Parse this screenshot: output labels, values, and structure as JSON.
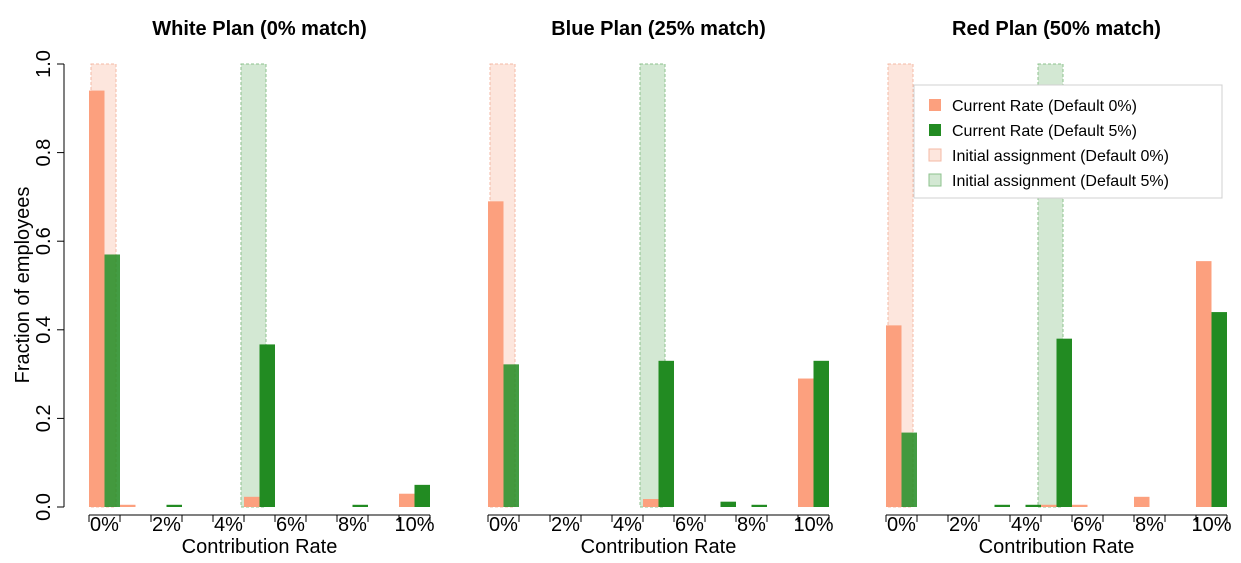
{
  "colors": {
    "current_default0": "#fca07e",
    "current_default5": "#228b22",
    "initial_default0": "#fde6dd",
    "initial_default5": "#d3e8d3",
    "initial_default0_border": "#f4b9a5",
    "initial_default5_border": "#8cc28c"
  },
  "shared": {
    "ylabel": "Fraction of employees",
    "xlabel": "Contribution Rate",
    "yticks": [
      "0.0",
      "0.2",
      "0.4",
      "0.6",
      "0.8",
      "1.0"
    ],
    "xtick_labels": [
      "0%",
      "2%",
      "4%",
      "6%",
      "8%",
      "10%"
    ]
  },
  "legend": {
    "items": [
      {
        "label": "Current Rate (Default 0%)",
        "color_key": "current_default0"
      },
      {
        "label": "Current Rate (Default 5%)",
        "color_key": "current_default5"
      },
      {
        "label": "Initial assignment (Default 0%)",
        "color_key": "initial_default0"
      },
      {
        "label": "Initial assignment (Default 5%)",
        "color_key": "initial_default5"
      }
    ]
  },
  "chart_data": [
    {
      "type": "bar",
      "title": "White Plan (0% match)",
      "xlabel": "Contribution Rate",
      "ylabel": "Fraction of employees",
      "ylim": [
        0,
        1
      ],
      "categories": [
        "0%",
        "1%",
        "2%",
        "3%",
        "4%",
        "5%",
        "6%",
        "7%",
        "8%",
        "9%",
        "10%"
      ],
      "series": [
        {
          "name": "Current Rate (Default 0%)",
          "values": [
            0.94,
            0.005,
            0,
            0,
            0,
            0.023,
            0,
            0,
            0,
            0,
            0.03
          ]
        },
        {
          "name": "Current Rate (Default 5%)",
          "values": [
            0.57,
            0,
            0.005,
            0,
            0,
            0.367,
            0,
            0,
            0.005,
            0,
            0.05
          ]
        }
      ],
      "initial_assignment": [
        {
          "name": "Initial assignment (Default 0%)",
          "category": "0%",
          "value": 1.0
        },
        {
          "name": "Initial assignment (Default 5%)",
          "category": "5%",
          "value": 1.0
        }
      ]
    },
    {
      "type": "bar",
      "title": "Blue Plan (25% match)",
      "xlabel": "Contribution Rate",
      "ylim": [
        0,
        1
      ],
      "categories": [
        "0%",
        "1%",
        "2%",
        "3%",
        "4%",
        "5%",
        "6%",
        "7%",
        "8%",
        "9%",
        "10%"
      ],
      "series": [
        {
          "name": "Current Rate (Default 0%)",
          "values": [
            0.69,
            0,
            0,
            0,
            0,
            0.018,
            0,
            0,
            0,
            0,
            0.29
          ]
        },
        {
          "name": "Current Rate (Default 5%)",
          "values": [
            0.322,
            0,
            0,
            0,
            0,
            0.33,
            0,
            0.012,
            0.005,
            0,
            0.33
          ]
        }
      ],
      "initial_assignment": [
        {
          "name": "Initial assignment (Default 0%)",
          "category": "0%",
          "value": 1.0
        },
        {
          "name": "Initial assignment (Default 5%)",
          "category": "5%",
          "value": 1.0
        }
      ]
    },
    {
      "type": "bar",
      "title": "Red Plan (50% match)",
      "xlabel": "Contribution Rate",
      "ylim": [
        0,
        1
      ],
      "legend_position": "top-right",
      "categories": [
        "0%",
        "1%",
        "2%",
        "3%",
        "4%",
        "5%",
        "6%",
        "7%",
        "8%",
        "9%",
        "10%"
      ],
      "series": [
        {
          "name": "Current Rate (Default 0%)",
          "values": [
            0.41,
            0,
            0,
            0,
            0,
            0.005,
            0.005,
            0,
            0.023,
            0,
            0.555
          ]
        },
        {
          "name": "Current Rate (Default 5%)",
          "values": [
            0.168,
            0,
            0,
            0.005,
            0.005,
            0.38,
            0,
            0,
            0,
            0,
            0.44
          ]
        }
      ],
      "initial_assignment": [
        {
          "name": "Initial assignment (Default 0%)",
          "category": "0%",
          "value": 1.0
        },
        {
          "name": "Initial assignment (Default 5%)",
          "category": "5%",
          "value": 1.0
        }
      ]
    }
  ]
}
